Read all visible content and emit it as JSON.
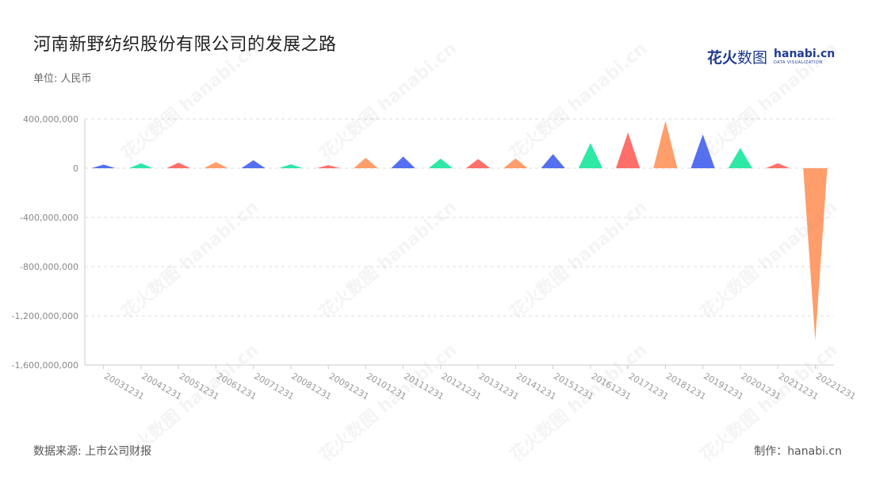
{
  "header": {
    "title": "河南新野纺织股份有限公司的发展之路",
    "unit": "单位: 人民币"
  },
  "logo": {
    "cn_bold": "花火",
    "cn_light": "数图",
    "en": "hanabi.cn",
    "tagline": "DATA VISUALIZATION"
  },
  "footer": {
    "source": "数据来源: 上市公司财报",
    "credit": "制作：hanabi.cn"
  },
  "watermark_text": "花火数图 hanabi.cn",
  "chart_data": {
    "type": "bar",
    "style": "pictorial triangle",
    "categories": [
      "20031231",
      "20041231",
      "20051231",
      "20061231",
      "20071231",
      "20081231",
      "20091231",
      "20101231",
      "20111231",
      "20121231",
      "20131231",
      "20141231",
      "20151231",
      "20161231",
      "20171231",
      "20181231",
      "20191231",
      "20201231",
      "20211231",
      "20221231"
    ],
    "values": [
      30000000,
      40000000,
      45000000,
      50000000,
      65000000,
      32000000,
      25000000,
      85000000,
      95000000,
      78000000,
      75000000,
      80000000,
      115000000,
      205000000,
      290000000,
      385000000,
      275000000,
      165000000,
      40000000,
      -1400000000
    ],
    "colors": [
      "#5470f0",
      "#2ee8a6",
      "#ff6f6a",
      "#ff9d6b"
    ],
    "ylim": [
      -1600000000,
      400000000
    ],
    "yticks": [
      400000000,
      0,
      -400000000,
      -800000000,
      -1200000000,
      -1600000000
    ],
    "ytick_labels": [
      "400,000,000",
      "0",
      "-400,000,000",
      "-800,000,000",
      "-1,200,000,000",
      "-1,600,000,000"
    ],
    "grid": true,
    "xlabel": "",
    "ylabel": ""
  }
}
